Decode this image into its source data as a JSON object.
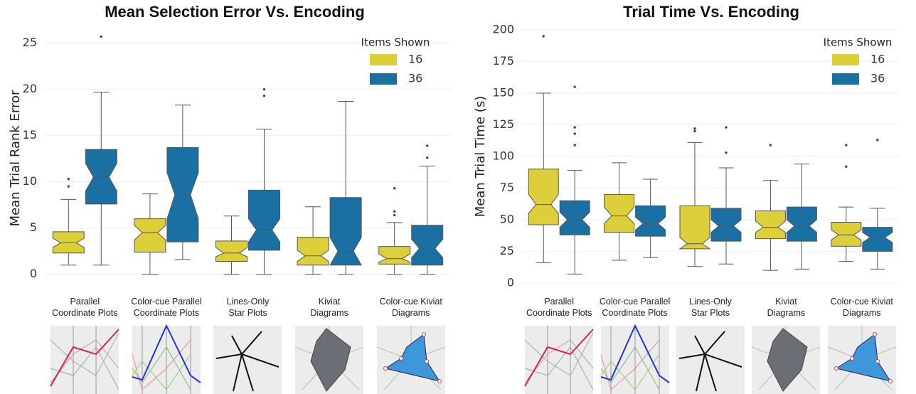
{
  "chart_data": [
    {
      "type": "boxplot",
      "title": "Mean Selection Error Vs. Encoding",
      "y_label": "Mean Trial Rank Error",
      "categories": [
        [
          "Parallel",
          "Coordinate Plots"
        ],
        [
          "Color-cue Parallel",
          "Coordinate Plots"
        ],
        [
          "Lines-Only",
          "Star Plots"
        ],
        [
          "Kiviat",
          "Diagrams"
        ],
        [
          "Color-cue Kiviat",
          "Diagrams"
        ]
      ],
      "legend_title": "Items Shown",
      "legend": "upper right",
      "grid": true,
      "ylim": [
        -1.1,
        26.2
      ],
      "yticks": [
        0,
        5,
        10,
        15,
        20,
        25
      ],
      "series": [
        {
          "name": "16",
          "color": "#dccf3a",
          "boxes": [
            {
              "whislo": 1,
              "q1": 2.3,
              "notch_lo": 2.9,
              "med": 3.4,
              "notch_hi": 3.9,
              "q3": 4.6,
              "whishi": 8.1,
              "fliers": [
                9.5,
                10.3
              ]
            },
            {
              "whislo": 0,
              "q1": 2.4,
              "notch_lo": 3.7,
              "med": 4.5,
              "notch_hi": 5.3,
              "q3": 6,
              "whishi": 8.7,
              "fliers": []
            },
            {
              "whislo": 0,
              "q1": 1.4,
              "notch_lo": 1.9,
              "med": 2.3,
              "notch_hi": 2.9,
              "q3": 3.6,
              "whishi": 6.3,
              "fliers": []
            },
            {
              "whislo": 0,
              "q1": 1,
              "notch_lo": 1.4,
              "med": 2,
              "notch_hi": 2.6,
              "q3": 4,
              "whishi": 7.3,
              "fliers": []
            },
            {
              "whislo": 0,
              "q1": 1.1,
              "notch_lo": 1.3,
              "med": 1.7,
              "notch_hi": 2.2,
              "q3": 3,
              "whishi": 5.6,
              "fliers": [
                6.4,
                6.8,
                9.3
              ]
            }
          ]
        },
        {
          "name": "36",
          "color": "#1a6fa3",
          "boxes": [
            {
              "whislo": 1,
              "q1": 7.6,
              "notch_lo": 9,
              "med": 10.5,
              "notch_hi": 12,
              "q3": 13.5,
              "whishi": 19.7,
              "fliers": [
                25.7
              ]
            },
            {
              "whislo": 1.6,
              "q1": 3.5,
              "notch_lo": 6,
              "med": 8.6,
              "notch_hi": 11,
              "q3": 13.7,
              "whishi": 18.3,
              "fliers": []
            },
            {
              "whislo": 0,
              "q1": 2.6,
              "notch_lo": 3.5,
              "med": 4.8,
              "notch_hi": 6,
              "q3": 9.1,
              "whishi": 15.7,
              "fliers": [
                19.3,
                20
              ]
            },
            {
              "whislo": 0,
              "q1": 1,
              "notch_lo": 1,
              "med": 2.5,
              "notch_hi": 4,
              "q3": 8.3,
              "whishi": 18.7,
              "fliers": []
            },
            {
              "whislo": 0,
              "q1": 1,
              "notch_lo": 1.8,
              "med": 2.8,
              "notch_hi": 3.8,
              "q3": 5.3,
              "whishi": 11.7,
              "fliers": [
                12.6,
                13.9
              ]
            }
          ]
        }
      ]
    },
    {
      "type": "boxplot",
      "title": "Trial Time Vs. Encoding",
      "y_label": "Mean Trial Time (s)",
      "categories": [
        [
          "Parallel",
          "Coordinate Plots"
        ],
        [
          "Color-cue Parallel",
          "Coordinate Plots"
        ],
        [
          "Lines-Only",
          "Star Plots"
        ],
        [
          "Kiviat",
          "Diagrams"
        ],
        [
          "Color-cue Kiviat",
          "Diagrams"
        ]
      ],
      "legend_title": "Items Shown",
      "legend": "upper right",
      "grid": true,
      "ylim": [
        -4,
        204
      ],
      "yticks": [
        0,
        25,
        50,
        75,
        100,
        125,
        150,
        175,
        200
      ],
      "series": [
        {
          "name": "16",
          "color": "#dccf3a",
          "boxes": [
            {
              "whislo": 16,
              "q1": 46,
              "notch_lo": 55,
              "med": 62,
              "notch_hi": 70,
              "q3": 90,
              "whishi": 150,
              "fliers": [
                195
              ]
            },
            {
              "whislo": 18,
              "q1": 40,
              "notch_lo": 47,
              "med": 53,
              "notch_hi": 60,
              "q3": 70,
              "whishi": 95,
              "fliers": []
            },
            {
              "whislo": 13,
              "q1": 27,
              "notch_lo": 27,
              "med": 31,
              "notch_hi": 36,
              "q3": 61,
              "whishi": 111,
              "fliers": [
                120,
                122
              ]
            },
            {
              "whislo": 10,
              "q1": 35,
              "notch_lo": 40,
              "med": 44,
              "notch_hi": 49,
              "q3": 57,
              "whishi": 81,
              "fliers": [
                109
              ]
            },
            {
              "whislo": 17,
              "q1": 29,
              "notch_lo": 34,
              "med": 38,
              "notch_hi": 42,
              "q3": 48,
              "whishi": 60,
              "fliers": [
                92,
                109
              ]
            }
          ]
        },
        {
          "name": "36",
          "color": "#1a6fa3",
          "boxes": [
            {
              "whislo": 7,
              "q1": 38,
              "notch_lo": 44,
              "med": 50,
              "notch_hi": 56,
              "q3": 65,
              "whishi": 89,
              "fliers": [
                109,
                118,
                123,
                155
              ]
            },
            {
              "whislo": 20,
              "q1": 37,
              "notch_lo": 42,
              "med": 47,
              "notch_hi": 52,
              "q3": 61,
              "whishi": 82,
              "fliers": []
            },
            {
              "whislo": 15,
              "q1": 33,
              "notch_lo": 40,
              "med": 45,
              "notch_hi": 50,
              "q3": 59,
              "whishi": 91,
              "fliers": [
                103,
                123
              ]
            },
            {
              "whislo": 11,
              "q1": 33,
              "notch_lo": 40,
              "med": 45,
              "notch_hi": 50,
              "q3": 60,
              "whishi": 94,
              "fliers": []
            },
            {
              "whislo": 11,
              "q1": 25,
              "notch_lo": 32,
              "med": 36,
              "notch_hi": 40,
              "q3": 44,
              "whishi": 59,
              "fliers": [
                113
              ]
            }
          ]
        }
      ]
    }
  ]
}
